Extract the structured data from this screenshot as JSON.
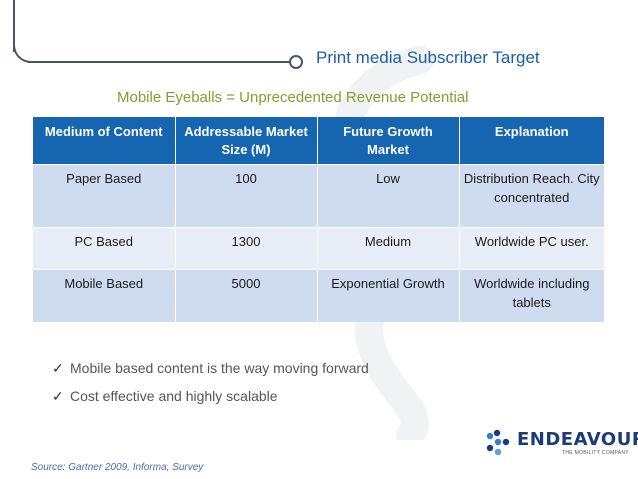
{
  "title": "Print media Subscriber Target",
  "subtitle": "Mobile Eyeballs = Unprecedented Revenue Potential",
  "table": {
    "headers": [
      "Medium of Content",
      "Addressable Market Size (M)",
      "Future Growth Market",
      "Explanation"
    ],
    "rows": [
      [
        "Paper Based",
        "100",
        "Low",
        "Distribution Reach. City concentrated"
      ],
      [
        "PC Based",
        "1300",
        "Medium",
        "Worldwide PC user."
      ],
      [
        "Mobile Based",
        "5000",
        "Exponential Growth",
        "Worldwide including tablets"
      ]
    ]
  },
  "bullets": [
    "Mobile based content is the way moving forward",
    "Cost effective and highly scalable"
  ],
  "check_glyph": "✓",
  "logo": {
    "name": "ENDEAVOUR",
    "tagline": "THE MOBILITY COMPANY"
  },
  "source": "Source: Gartner 2009, Informa, Survey",
  "colors": {
    "header_bg": "#1565b0",
    "row_odd": "#cfdcef",
    "row_even": "#e8eef7",
    "title": "#1a5ea8",
    "subtitle": "#8a9a2e",
    "logo": "#1b3c78"
  }
}
